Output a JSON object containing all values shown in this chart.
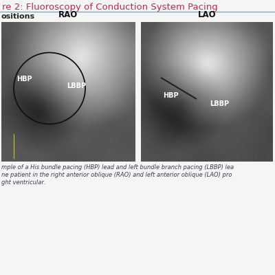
{
  "title": "re 2: Fluoroscopy of Conduction System Pacing",
  "title_color": "#cc2255",
  "title_fontsize": 9.5,
  "subtitle": "ositions",
  "subtitle_color": "#222222",
  "subtitle_fontsize": 8,
  "bg_color": "#f5f5f5",
  "divider_color": "#7aafc0",
  "caption_lines": [
    "mple of a His bundle pacing (HBP) lead and left bundle branch pacing (LBBP) lea",
    "ne patient in the right anterior oblique (RAO) and left anterior oblique (LAO) pro",
    "ght ventricular."
  ],
  "caption_color": "#3a3a5a",
  "caption_fontsize": 6.0,
  "rao_label": "RAO",
  "lao_label": "LAO",
  "label_color": "#111111",
  "label_fontsize": 8.5,
  "annotation_fontsize": 7,
  "fig_width": 4.0,
  "fig_height": 4.0,
  "dpi": 100
}
